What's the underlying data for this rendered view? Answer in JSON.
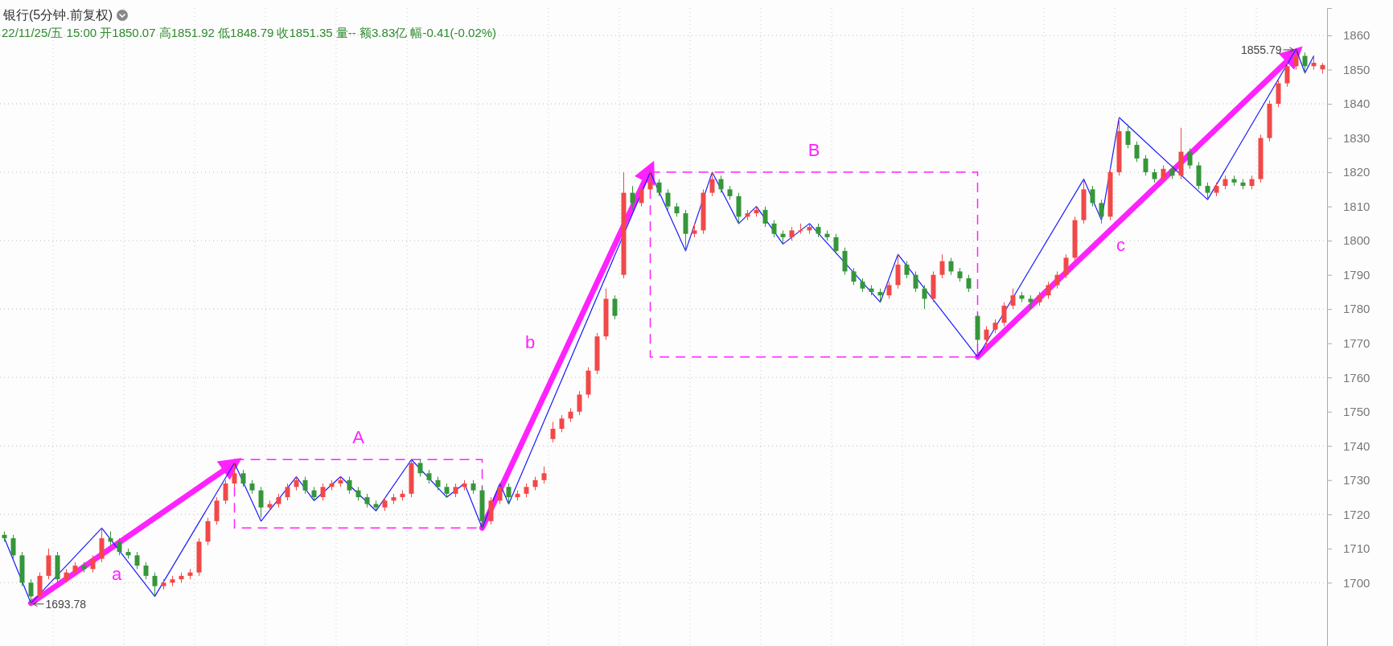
{
  "chart_data": {
    "type": "candlestick",
    "title": "银行(5分钟.前复权)",
    "subtitle": "22/11/25/五 15:00 开1850.07 高1851.92 低1848.79 收1851.35 量-- 额3.83亿 幅-0.41(-0.02%)",
    "categories": [
      null,
      null,
      null,
      null,
      null,
      null,
      null,
      null,
      null,
      null,
      null,
      null,
      null,
      null,
      null,
      null,
      null,
      null,
      null,
      null,
      null,
      null,
      null,
      null,
      null,
      null,
      null,
      null,
      null,
      null,
      null,
      null,
      null,
      null,
      null,
      null,
      null,
      null,
      null,
      null,
      null,
      null,
      null,
      null,
      null,
      null,
      null,
      null,
      null,
      null,
      null,
      null,
      null,
      null,
      null,
      null,
      null,
      null,
      null,
      null,
      null,
      null,
      null,
      null,
      null,
      null,
      null,
      null,
      null,
      null,
      null,
      null,
      null,
      null,
      null,
      null,
      null,
      null,
      null,
      null,
      null,
      null,
      null,
      null,
      null,
      null,
      null,
      null,
      null,
      null,
      null,
      null,
      null,
      null,
      null,
      null,
      null,
      null,
      null,
      null,
      null,
      null,
      null,
      null,
      null,
      null,
      null,
      null,
      null,
      null,
      null,
      null,
      null,
      null,
      null,
      null,
      null,
      null,
      null,
      null,
      null,
      null,
      null,
      null,
      null,
      null,
      null,
      null,
      null,
      null,
      null,
      null,
      null,
      null,
      null,
      null,
      null,
      null,
      null,
      null,
      null,
      null,
      null,
      null,
      null,
      null,
      null,
      null,
      null,
      null
    ],
    "ohlc": [
      [
        1714,
        1715,
        1712,
        1713
      ],
      [
        1713,
        1714,
        1707,
        1708
      ],
      [
        1708,
        1709,
        1699,
        1700
      ],
      [
        1700,
        1701,
        1693.78,
        1696
      ],
      [
        1696,
        1703,
        1695,
        1702
      ],
      [
        1702,
        1710,
        1701,
        1708
      ],
      [
        1708,
        1709,
        1700,
        1701
      ],
      [
        1701,
        1704,
        1700,
        1703
      ],
      [
        1703,
        1706,
        1702,
        1705
      ],
      [
        1705,
        1706,
        1703,
        1704
      ],
      [
        1704,
        1708,
        1703,
        1707
      ],
      [
        1707,
        1716,
        1706,
        1713
      ],
      [
        1713,
        1715,
        1711,
        1712
      ],
      [
        1712,
        1713,
        1708,
        1709
      ],
      [
        1709,
        1710,
        1707,
        1708
      ],
      [
        1708,
        1709,
        1704,
        1705
      ],
      [
        1705,
        1706,
        1701,
        1702
      ],
      [
        1702,
        1703,
        1696,
        1699
      ],
      [
        1699,
        1701,
        1698,
        1700
      ],
      [
        1700,
        1702,
        1699,
        1701
      ],
      [
        1701,
        1703,
        1700,
        1702
      ],
      [
        1702,
        1704,
        1701,
        1703
      ],
      [
        1703,
        1713,
        1702,
        1712
      ],
      [
        1712,
        1719,
        1711,
        1718
      ],
      [
        1718,
        1725,
        1717,
        1724
      ],
      [
        1724,
        1730,
        1723,
        1729
      ],
      [
        1729,
        1735,
        1728,
        1732
      ],
      [
        1732,
        1733,
        1728,
        1729
      ],
      [
        1729,
        1730,
        1726,
        1727
      ],
      [
        1727,
        1728,
        1719,
        1722
      ],
      [
        1722,
        1724,
        1721,
        1723
      ],
      [
        1723,
        1726,
        1722,
        1725
      ],
      [
        1725,
        1729,
        1724,
        1728
      ],
      [
        1728,
        1731,
        1727,
        1730
      ],
      [
        1730,
        1731,
        1726,
        1727
      ],
      [
        1727,
        1728,
        1724,
        1725
      ],
      [
        1725,
        1729,
        1724,
        1728
      ],
      [
        1728,
        1730,
        1727,
        1729
      ],
      [
        1729,
        1731,
        1728,
        1730
      ],
      [
        1730,
        1731,
        1726,
        1727
      ],
      [
        1727,
        1728,
        1724,
        1725
      ],
      [
        1725,
        1726,
        1722,
        1723
      ],
      [
        1723,
        1724,
        1721,
        1722
      ],
      [
        1722,
        1725,
        1721,
        1724
      ],
      [
        1724,
        1726,
        1723,
        1725
      ],
      [
        1725,
        1727,
        1724,
        1726
      ],
      [
        1726,
        1736,
        1725,
        1735
      ],
      [
        1735,
        1736,
        1731,
        1732
      ],
      [
        1732,
        1733,
        1729,
        1730
      ],
      [
        1730,
        1731,
        1727,
        1728
      ],
      [
        1728,
        1729,
        1725,
        1726
      ],
      [
        1726,
        1729,
        1725,
        1728
      ],
      [
        1728,
        1730,
        1727,
        1729
      ],
      [
        1729,
        1730,
        1726,
        1727
      ],
      [
        1727,
        1728,
        1716,
        1718
      ],
      [
        1718,
        1725,
        1717,
        1724
      ],
      [
        1724,
        1729,
        1723,
        1728
      ],
      [
        1728,
        1729,
        1723,
        1725
      ],
      [
        1725,
        1727,
        1724,
        1726
      ],
      [
        1726,
        1729,
        1725,
        1728
      ],
      [
        1728,
        1731,
        1727,
        1730
      ],
      [
        1730,
        1734,
        1729,
        1732
      ],
      [
        1742,
        1747,
        1741,
        1745
      ],
      [
        1745,
        1749,
        1744,
        1748
      ],
      [
        1748,
        1751,
        1747,
        1750
      ],
      [
        1750,
        1756,
        1749,
        1755
      ],
      [
        1755,
        1763,
        1754,
        1762
      ],
      [
        1762,
        1773,
        1761,
        1772
      ],
      [
        1772,
        1786,
        1771,
        1783
      ],
      [
        1783,
        1784,
        1777,
        1778
      ],
      [
        1790,
        1820,
        1789,
        1814
      ],
      [
        1814,
        1816,
        1809,
        1811
      ],
      [
        1811,
        1816,
        1810,
        1815
      ],
      [
        1815,
        1820,
        1814,
        1817
      ],
      [
        1817,
        1818,
        1813,
        1814
      ],
      [
        1814,
        1815,
        1809,
        1810
      ],
      [
        1810,
        1811,
        1807,
        1808
      ],
      [
        1808,
        1809,
        1797,
        1802
      ],
      [
        1802,
        1805,
        1801,
        1803
      ],
      [
        1803,
        1815,
        1802,
        1814
      ],
      [
        1814,
        1820,
        1813,
        1818
      ],
      [
        1818,
        1819,
        1814,
        1815
      ],
      [
        1815,
        1816,
        1812,
        1813
      ],
      [
        1813,
        1814,
        1805,
        1807
      ],
      [
        1807,
        1809,
        1806,
        1808
      ],
      [
        1808,
        1810,
        1807,
        1809
      ],
      [
        1809,
        1810,
        1804,
        1805
      ],
      [
        1805,
        1806,
        1801,
        1802
      ],
      [
        1802,
        1803,
        1799,
        1801
      ],
      [
        1801,
        1804,
        1800,
        1803
      ],
      [
        1803,
        1805,
        1802,
        1803
      ],
      [
        1803,
        1805,
        1802,
        1804
      ],
      [
        1804,
        1805,
        1801,
        1802
      ],
      [
        1802,
        1803,
        1800,
        1801
      ],
      [
        1801,
        1802,
        1796,
        1797
      ],
      [
        1797,
        1798,
        1790,
        1791
      ],
      [
        1791,
        1792,
        1787,
        1788
      ],
      [
        1788,
        1789,
        1785,
        1786
      ],
      [
        1786,
        1787,
        1784,
        1785
      ],
      [
        1785,
        1786,
        1782,
        1784
      ],
      [
        1784,
        1788,
        1783,
        1787
      ],
      [
        1787,
        1796,
        1786,
        1793
      ],
      [
        1793,
        1794,
        1789,
        1790
      ],
      [
        1790,
        1791,
        1785,
        1786
      ],
      [
        1786,
        1787,
        1780,
        1783
      ],
      [
        1783,
        1791,
        1782,
        1790
      ],
      [
        1790,
        1796,
        1789,
        1794
      ],
      [
        1794,
        1795,
        1790,
        1791
      ],
      [
        1791,
        1792,
        1788,
        1789
      ],
      [
        1789,
        1790,
        1785,
        1786
      ],
      [
        1778,
        1779,
        1766,
        1771
      ],
      [
        1771,
        1775,
        1769,
        1774
      ],
      [
        1774,
        1777,
        1773,
        1776
      ],
      [
        1776,
        1782,
        1775,
        1781
      ],
      [
        1781,
        1786,
        1780,
        1784
      ],
      [
        1784,
        1785,
        1782,
        1783
      ],
      [
        1783,
        1784,
        1780,
        1782
      ],
      [
        1782,
        1785,
        1781,
        1784
      ],
      [
        1784,
        1788,
        1783,
        1787
      ],
      [
        1787,
        1791,
        1786,
        1790
      ],
      [
        1790,
        1796,
        1789,
        1795
      ],
      [
        1795,
        1807,
        1794,
        1806
      ],
      [
        1806,
        1818,
        1805,
        1815
      ],
      [
        1815,
        1816,
        1810,
        1811
      ],
      [
        1811,
        1812,
        1805,
        1807
      ],
      [
        1807,
        1821,
        1806,
        1820
      ],
      [
        1820,
        1836,
        1819,
        1832
      ],
      [
        1832,
        1834,
        1827,
        1828
      ],
      [
        1828,
        1829,
        1823,
        1824
      ],
      [
        1824,
        1825,
        1819,
        1820
      ],
      [
        1820,
        1821,
        1817,
        1818
      ],
      [
        1818,
        1822,
        1817,
        1821
      ],
      [
        1821,
        1822,
        1818,
        1819
      ],
      [
        1819,
        1833,
        1818,
        1826
      ],
      [
        1826,
        1827,
        1821,
        1822
      ],
      [
        1822,
        1823,
        1815,
        1816
      ],
      [
        1816,
        1817,
        1812,
        1814
      ],
      [
        1814,
        1817,
        1813,
        1816
      ],
      [
        1816,
        1819,
        1815,
        1818
      ],
      [
        1818,
        1819,
        1816,
        1817
      ],
      [
        1817,
        1818,
        1815,
        1816
      ],
      [
        1816,
        1819,
        1815,
        1818
      ],
      [
        1818,
        1831,
        1817,
        1830
      ],
      [
        1830,
        1841,
        1829,
        1840
      ],
      [
        1840,
        1847,
        1839,
        1846
      ],
      [
        1846,
        1852,
        1845,
        1851
      ],
      [
        1851,
        1855.79,
        1850,
        1854
      ],
      [
        1854,
        1855,
        1849,
        1851
      ],
      [
        1851,
        1854,
        1850,
        1852
      ],
      [
        1850.07,
        1851.92,
        1848.79,
        1851.35
      ]
    ],
    "series": [
      {
        "type": "line",
        "color": "#1a1aff",
        "values": [
          1713,
          null,
          null,
          1694,
          null,
          null,
          null,
          null,
          null,
          null,
          null,
          1716,
          null,
          null,
          null,
          null,
          null,
          1696,
          null,
          null,
          null,
          null,
          null,
          null,
          null,
          null,
          1735,
          null,
          null,
          1718,
          null,
          null,
          null,
          1731,
          null,
          1724,
          null,
          null,
          1731,
          null,
          null,
          null,
          1721,
          null,
          null,
          null,
          1736,
          null,
          null,
          null,
          1725,
          null,
          1729,
          null,
          1716,
          null,
          1729,
          1723,
          null,
          null,
          null,
          null,
          null,
          null,
          null,
          null,
          null,
          null,
          null,
          null,
          null,
          null,
          null,
          1820,
          null,
          null,
          null,
          1797,
          null,
          null,
          1820,
          null,
          null,
          1805,
          null,
          1810,
          null,
          null,
          1799,
          null,
          null,
          1805,
          null,
          null,
          null,
          null,
          null,
          null,
          null,
          1782,
          null,
          1796,
          null,
          null,
          null,
          null,
          null,
          null,
          null,
          null,
          1766,
          null,
          null,
          null,
          null,
          null,
          null,
          null,
          null,
          null,
          null,
          null,
          1818,
          null,
          1806,
          null,
          1836,
          null,
          null,
          null,
          null,
          null,
          null,
          null,
          null,
          null,
          1812,
          null,
          null,
          null,
          null,
          null,
          null,
          null,
          null,
          null,
          1856,
          1849,
          1854,
          null
        ]
      },
      {
        "type": "line",
        "color": "#ff22ff",
        "values": [
          null,
          null,
          null,
          1694,
          null,
          null,
          null,
          null,
          null,
          null,
          null,
          null,
          null,
          null,
          null,
          null,
          null,
          null,
          null,
          null,
          null,
          null,
          null,
          null,
          null,
          null,
          1735,
          null,
          null,
          null,
          null,
          null,
          null,
          null,
          null,
          null,
          null,
          null,
          null,
          null,
          null,
          null,
          null,
          null,
          null,
          null,
          null,
          null,
          null,
          null,
          null,
          null,
          null,
          null,
          null,
          null,
          null,
          null,
          null,
          null,
          null,
          null,
          null,
          null,
          null,
          null,
          null,
          null,
          null,
          null,
          null,
          null,
          null,
          null,
          null,
          null,
          null,
          null,
          null,
          null,
          null,
          null,
          null,
          null,
          null,
          null,
          null,
          null,
          null,
          null,
          null,
          null,
          null,
          null,
          null,
          null,
          null,
          null,
          null,
          null,
          null,
          null,
          null,
          null,
          null,
          null,
          null,
          null,
          null,
          null,
          null,
          null,
          null,
          null,
          null,
          null,
          null,
          null,
          null,
          null,
          null,
          null,
          null,
          null,
          null,
          null,
          null,
          null,
          null,
          null,
          null,
          null,
          null,
          null,
          null,
          null,
          null,
          null,
          null,
          null,
          null,
          null,
          null,
          null,
          null,
          null,
          null,
          null,
          null,
          null
        ]
      },
      {
        "type": "line",
        "color": "#ff22ff",
        "values": [
          null,
          null,
          null,
          null,
          null,
          null,
          null,
          null,
          null,
          null,
          null,
          null,
          null,
          null,
          null,
          null,
          null,
          null,
          null,
          null,
          null,
          null,
          null,
          null,
          null,
          null,
          null,
          null,
          null,
          null,
          null,
          null,
          null,
          null,
          null,
          null,
          null,
          null,
          null,
          null,
          null,
          null,
          null,
          null,
          null,
          null,
          null,
          null,
          null,
          null,
          null,
          null,
          null,
          null,
          1716,
          null,
          null,
          null,
          null,
          null,
          null,
          null,
          null,
          null,
          null,
          null,
          null,
          null,
          null,
          null,
          null,
          null,
          null,
          1821,
          null,
          null,
          null,
          null,
          null,
          null,
          null,
          null,
          null,
          null,
          null,
          null,
          null,
          null,
          null,
          null,
          null,
          null,
          null,
          null,
          null,
          null,
          null,
          null,
          null,
          null,
          null,
          null,
          null,
          null,
          null,
          null,
          null,
          null,
          null,
          null,
          null,
          null,
          null,
          null,
          null,
          null,
          null,
          null,
          null,
          null,
          null,
          null,
          null,
          null,
          null,
          null,
          null,
          null,
          null,
          null,
          null,
          null,
          null,
          null,
          null,
          null,
          null,
          null,
          null,
          null,
          null,
          null,
          null,
          null,
          null,
          null,
          null,
          null,
          null,
          null
        ]
      },
      {
        "type": "line",
        "color": "#ff22ff",
        "values": [
          null,
          null,
          null,
          null,
          null,
          null,
          null,
          null,
          null,
          null,
          null,
          null,
          null,
          null,
          null,
          null,
          null,
          null,
          null,
          null,
          null,
          null,
          null,
          null,
          null,
          null,
          null,
          null,
          null,
          null,
          null,
          null,
          null,
          null,
          null,
          null,
          null,
          null,
          null,
          null,
          null,
          null,
          null,
          null,
          null,
          null,
          null,
          null,
          null,
          null,
          null,
          null,
          null,
          null,
          null,
          null,
          null,
          null,
          null,
          null,
          null,
          null,
          null,
          null,
          null,
          null,
          null,
          null,
          null,
          null,
          null,
          null,
          null,
          null,
          null,
          null,
          null,
          null,
          null,
          null,
          null,
          null,
          null,
          null,
          null,
          null,
          null,
          null,
          null,
          null,
          null,
          null,
          null,
          null,
          null,
          null,
          null,
          null,
          null,
          null,
          null,
          null,
          null,
          null,
          null,
          null,
          null,
          null,
          null,
          null,
          1766,
          null,
          null,
          null,
          null,
          null,
          null,
          null,
          null,
          null,
          null,
          null,
          null,
          null,
          null,
          null,
          null,
          null,
          null,
          null,
          null,
          null,
          null,
          null,
          null,
          null,
          null,
          null,
          null,
          null,
          null,
          null,
          null,
          null,
          null,
          null,
          1855,
          null,
          null,
          null
        ]
      }
    ],
    "annotations": [
      "a",
      "A",
      "b",
      "B",
      "c",
      "1693.78",
      "1855.79"
    ],
    "ylim": [
      1681.5,
      1868
    ],
    "yticks": [
      1700,
      1710,
      1720,
      1730,
      1740,
      1750,
      1760,
      1770,
      1780,
      1790,
      1800,
      1810,
      1820,
      1830,
      1840,
      1850,
      1860
    ],
    "grid": "y",
    "tick_labels": "y"
  }
}
